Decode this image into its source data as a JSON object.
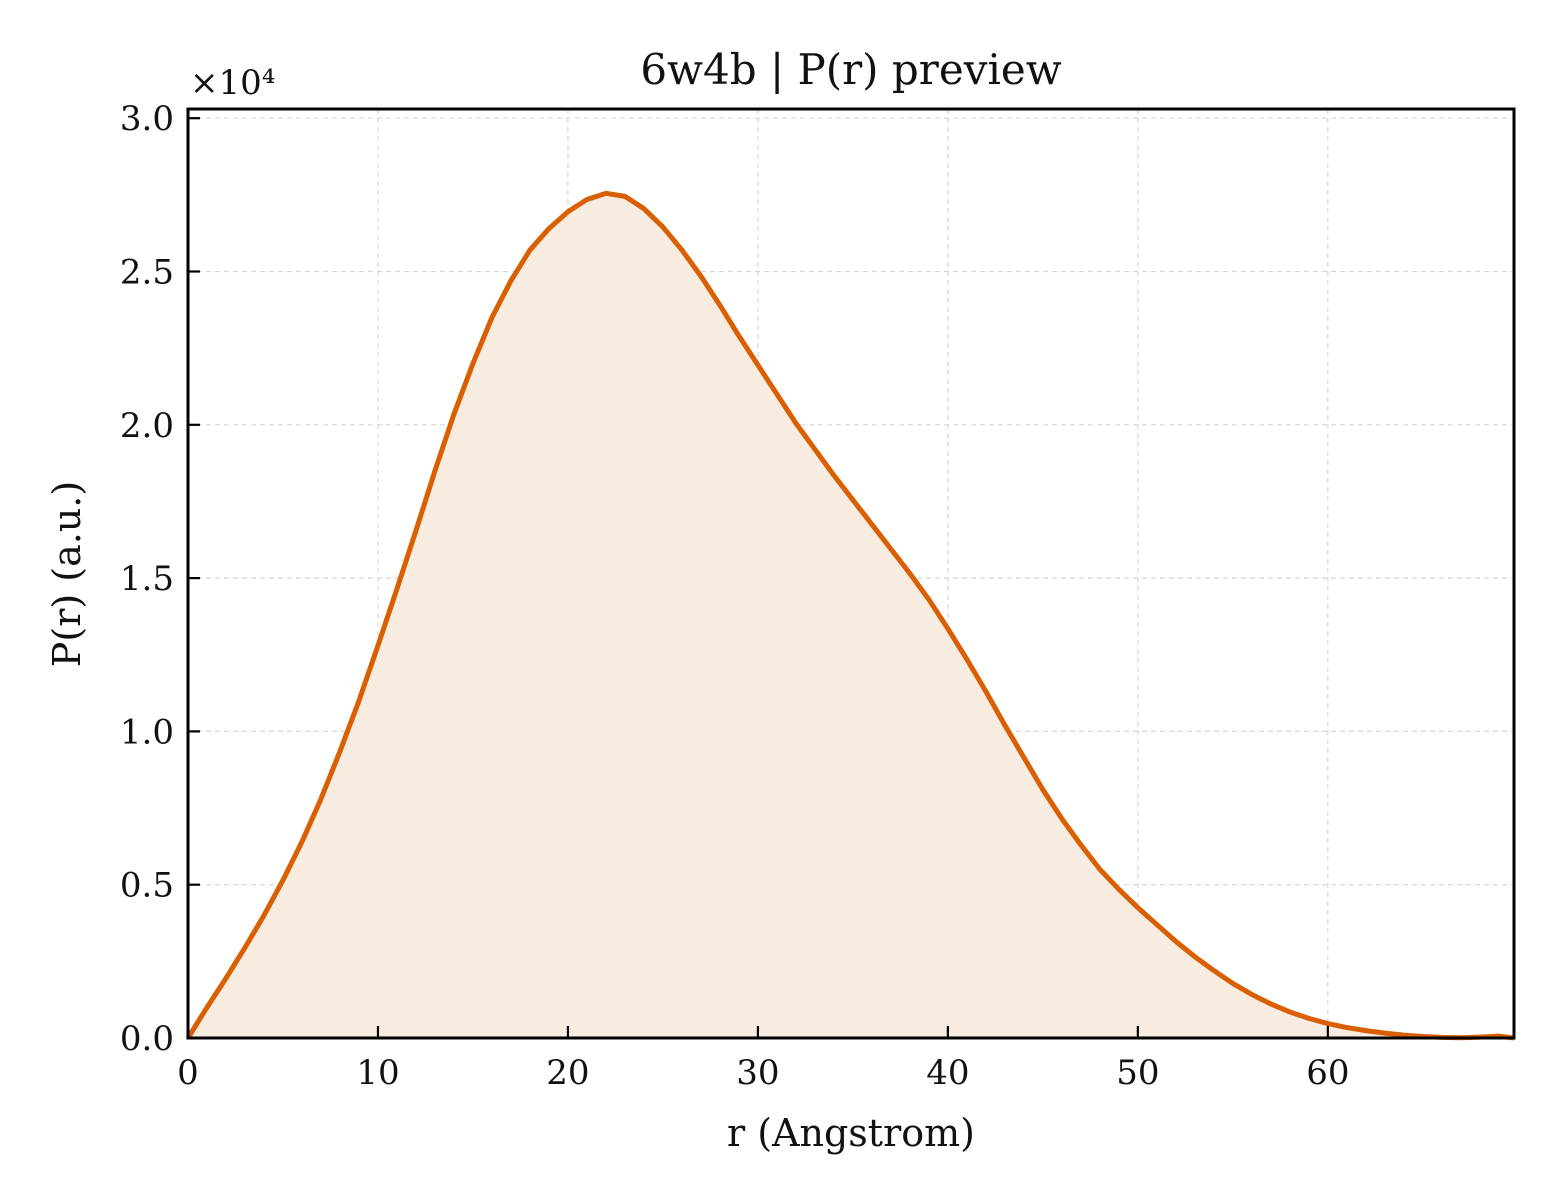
{
  "chart_data": {
    "type": "area",
    "title": "6w4b | P(r) preview",
    "xlabel": "r (Angstrom)",
    "ylabel": "P(r) (a.u.)",
    "y_scale_label": "×10⁴",
    "xlim": [
      0,
      69.8
    ],
    "ylim": [
      0,
      30300
    ],
    "x_ticks": [
      0,
      10,
      20,
      30,
      40,
      50,
      60
    ],
    "x_tick_labels": [
      "0",
      "10",
      "20",
      "30",
      "40",
      "50",
      "60"
    ],
    "y_ticks": [
      0,
      5000,
      10000,
      15000,
      20000,
      25000,
      30000
    ],
    "y_tick_labels": [
      "0.0",
      "0.5",
      "1.0",
      "1.5",
      "2.0",
      "2.5",
      "3.0"
    ],
    "grid": true,
    "line_color": "#d95f02",
    "fill_color": "#f8ebe0",
    "series": [
      {
        "x": [
          0,
          1,
          2,
          3,
          4,
          5,
          6,
          7,
          8,
          9,
          10,
          11,
          12,
          13,
          14,
          15,
          16,
          17,
          18,
          19,
          20,
          21,
          22,
          23,
          24,
          25,
          26,
          27,
          28,
          29,
          30,
          31,
          32,
          33,
          34,
          35,
          36,
          37,
          38,
          39,
          40,
          41,
          42,
          43,
          44,
          45,
          46,
          47,
          48,
          49,
          50,
          51,
          52,
          53,
          54,
          55,
          56,
          57,
          58,
          59,
          60,
          61,
          62,
          63,
          64,
          65,
          66,
          67,
          68,
          69,
          69.8
        ],
        "y": [
          0,
          1000,
          1950,
          2950,
          4000,
          5150,
          6400,
          7800,
          9350,
          11000,
          12800,
          14650,
          16550,
          18500,
          20350,
          22000,
          23500,
          24700,
          25700,
          26400,
          26950,
          27350,
          27550,
          27450,
          27050,
          26450,
          25700,
          24850,
          23900,
          22900,
          21950,
          21000,
          20050,
          19200,
          18350,
          17550,
          16750,
          15950,
          15150,
          14300,
          13350,
          12350,
          11300,
          10200,
          9150,
          8100,
          7150,
          6300,
          5500,
          4850,
          4250,
          3700,
          3150,
          2650,
          2200,
          1780,
          1420,
          1110,
          850,
          640,
          470,
          340,
          240,
          160,
          95,
          50,
          20,
          10,
          30,
          60,
          0
        ]
      }
    ]
  }
}
